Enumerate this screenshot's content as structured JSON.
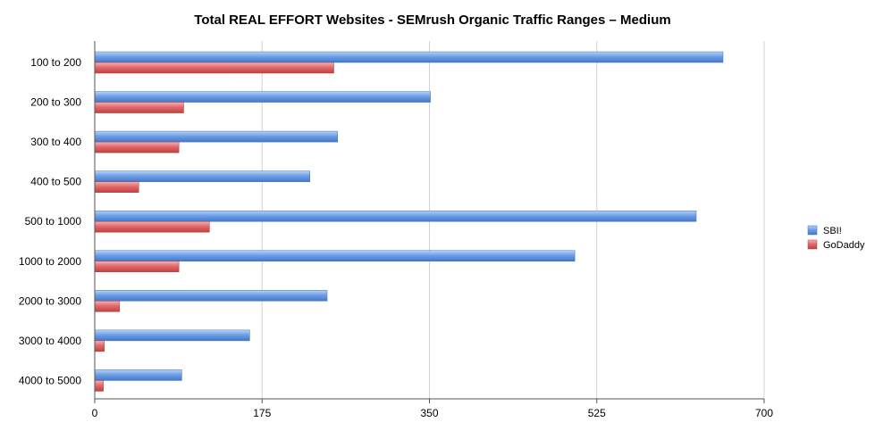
{
  "chart_data": {
    "type": "bar",
    "orientation": "horizontal",
    "title": "Total REAL EFFORT Websites - SEMrush Organic Traffic Ranges – Medium",
    "xlabel": "",
    "ylabel": "",
    "xlim": [
      0,
      700
    ],
    "xticks": [
      "0",
      "175",
      "350",
      "525",
      "700"
    ],
    "grid": true,
    "legend_position": "right",
    "categories": [
      "100 to 200",
      "200 to 300",
      "300 to 400",
      "400 to 500",
      "500 to 1000",
      "1000 to 2000",
      "2000 to 3000",
      "3000 to 4000",
      "4000 to 5000"
    ],
    "series": [
      {
        "name": "SBI!",
        "color": "#5b8fdc",
        "values": [
          657,
          351,
          254,
          225,
          629,
          502,
          243,
          162,
          91
        ]
      },
      {
        "name": "GoDaddy",
        "color": "#d9575a",
        "values": [
          250,
          93,
          88,
          46,
          120,
          88,
          26,
          10,
          9
        ]
      }
    ]
  }
}
